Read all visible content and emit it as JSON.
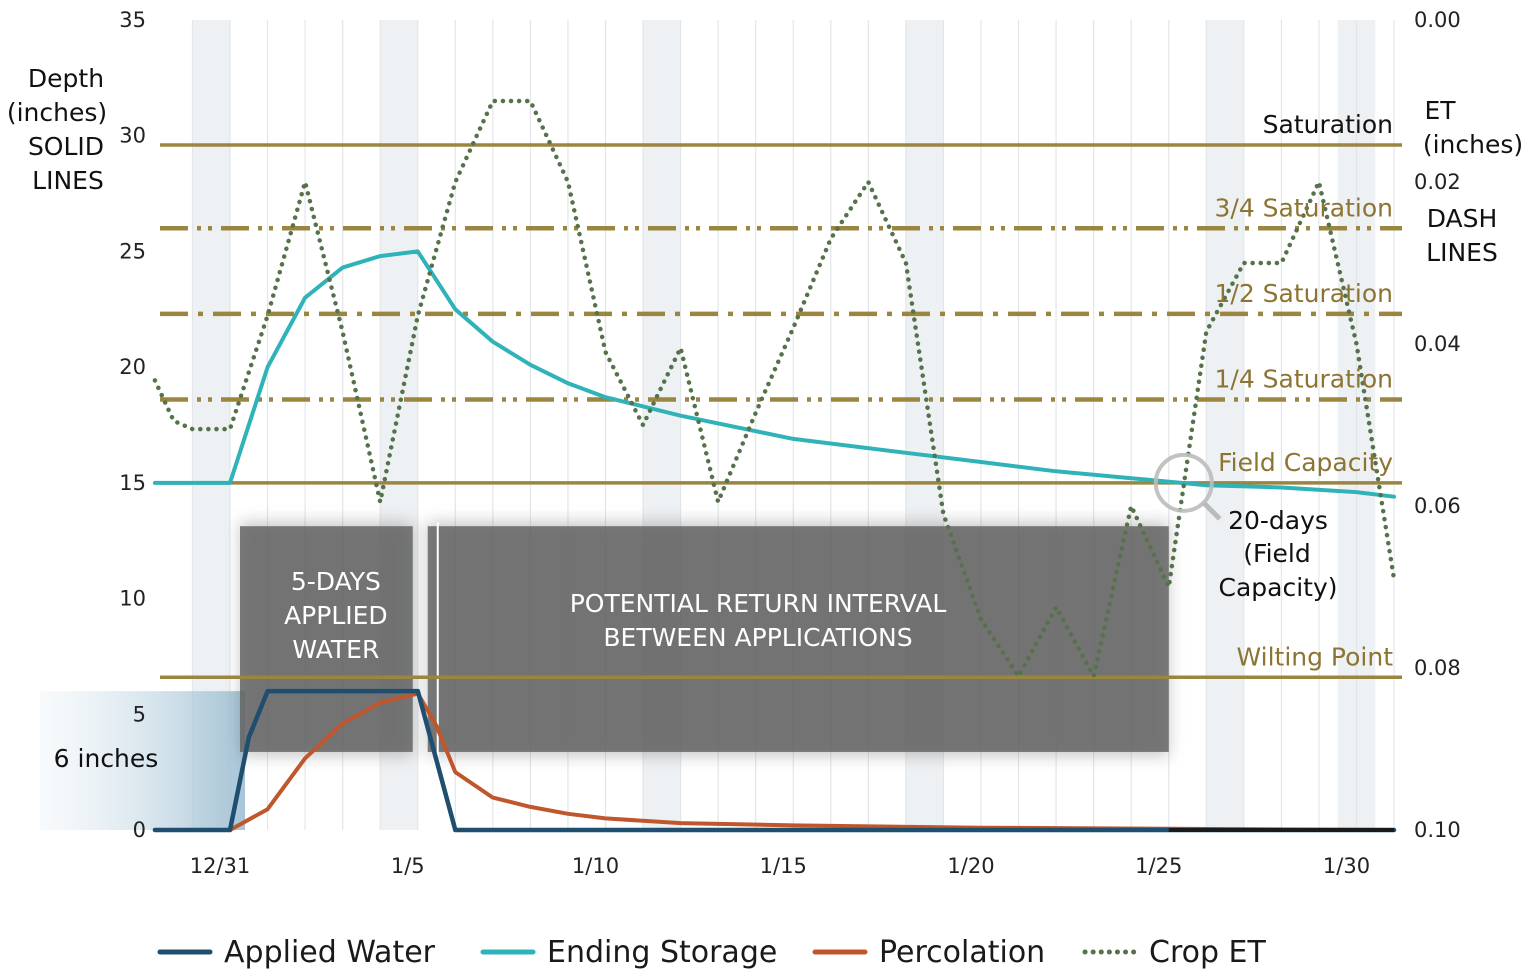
{
  "chart_data": {
    "type": "line",
    "x_axis": {
      "tick_labels": [
        "12/31",
        "1/5",
        "1/10",
        "1/15",
        "1/20",
        "1/25",
        "1/30"
      ],
      "tick_day_index": [
        0,
        5,
        10,
        15,
        20,
        25,
        30
      ],
      "range_day_index": [
        -2,
        31
      ]
    },
    "y_axis_left": {
      "label_lines": [
        "Depth",
        "(inches)",
        "SOLID",
        "LINES"
      ],
      "ticks": [
        "0",
        "5",
        "10",
        "15",
        "20",
        "25",
        "30",
        "35"
      ],
      "range": [
        0,
        35
      ]
    },
    "y_axis_right": {
      "label_lines": [
        "ET",
        "(inches)",
        "DASH",
        "LINES"
      ],
      "ticks": [
        "0.00",
        "0.02",
        "0.04",
        "0.06",
        "0.08",
        "0.10"
      ],
      "range": [
        0.1,
        0.0
      ],
      "inverted": true
    },
    "reference_lines": [
      {
        "label": "Saturation",
        "value": 29.6,
        "style": "solid"
      },
      {
        "label": "3/4 Saturation",
        "value": 26.0,
        "style": "dash-dot-dot"
      },
      {
        "label": "1/2 Saturation",
        "value": 22.3,
        "style": "dash-dot"
      },
      {
        "label": "1/4 Saturation",
        "value": 18.6,
        "style": "dash-dot-dot"
      },
      {
        "label": "Field Capacity",
        "value": 15.0,
        "style": "solid"
      },
      {
        "label": "Wilting Point",
        "value": 6.6,
        "style": "solid"
      }
    ],
    "shaded_regions": [
      {
        "label_lines": [
          "5-DAYS",
          "APPLIED",
          "WATER"
        ],
        "x_start": 0,
        "x_end": 5
      },
      {
        "label_lines": [
          "POTENTIAL RETURN INTERVAL",
          "BETWEEN APPLICATIONS"
        ],
        "x_start": 5,
        "x_end": 25
      }
    ],
    "annotations": [
      {
        "label": "6 inches",
        "value": 6
      },
      {
        "label_lines": [
          "20-days",
          "(Field",
          "Capacity)"
        ],
        "x": 25,
        "y": 15
      }
    ],
    "series": [
      {
        "name": "Applied Water",
        "axis": "left",
        "color": "#1f4e6e",
        "x": [
          -2,
          -1,
          0,
          0.5,
          1,
          2,
          3,
          4,
          5,
          6,
          7,
          10,
          15,
          20,
          25,
          30,
          31
        ],
        "y": [
          0,
          0,
          0,
          4,
          6,
          6,
          6,
          6,
          6,
          0,
          0,
          0,
          0,
          0,
          0,
          0,
          0
        ]
      },
      {
        "name": "Ending Storage",
        "axis": "left",
        "color": "#2fb3b9",
        "x": [
          -2,
          0,
          1,
          2,
          3,
          4,
          5,
          6,
          7,
          8,
          9,
          10,
          12,
          15,
          18,
          20,
          22,
          24,
          26,
          28,
          30,
          31
        ],
        "y": [
          15,
          15,
          20,
          23,
          24.3,
          24.8,
          25,
          22.5,
          21.1,
          20.1,
          19.3,
          18.7,
          17.9,
          16.9,
          16.3,
          15.9,
          15.5,
          15.2,
          14.9,
          14.8,
          14.6,
          14.4
        ]
      },
      {
        "name": "Percolation",
        "axis": "left",
        "color": "#c0562b",
        "x": [
          -2,
          0,
          1,
          2,
          3,
          4,
          5,
          5.5,
          6,
          7,
          8,
          9,
          10,
          12,
          15,
          20,
          25,
          31
        ],
        "y": [
          0,
          0,
          0.9,
          3.1,
          4.6,
          5.5,
          5.9,
          4.5,
          2.5,
          1.4,
          1.0,
          0.7,
          0.5,
          0.3,
          0.2,
          0.1,
          0.05,
          0
        ]
      },
      {
        "name": "Crop ET",
        "axis": "right",
        "color": "#55724a",
        "x": [
          -2,
          -1.5,
          -1,
          0,
          1,
          2,
          3,
          4,
          5,
          6,
          7,
          8,
          9,
          10,
          11,
          12,
          13,
          14,
          15,
          16,
          17,
          18,
          19,
          20,
          21,
          22,
          23,
          24,
          25,
          26,
          27,
          28,
          29,
          30,
          31
        ],
        "y": [
          0.0445,
          0.0495,
          0.0505,
          0.0505,
          0.0365,
          0.02,
          0.0385,
          0.0595,
          0.0365,
          0.02,
          0.01,
          0.01,
          0.02,
          0.041,
          0.05,
          0.0405,
          0.0595,
          0.0485,
          0.038,
          0.027,
          0.02,
          0.03,
          0.061,
          0.074,
          0.081,
          0.0725,
          0.081,
          0.06,
          0.07,
          0.0385,
          0.03,
          0.03,
          0.02,
          0.04,
          0.069
        ]
      }
    ],
    "legend": {
      "position": "bottom",
      "entries": [
        {
          "label": "Applied Water",
          "color": "#1f4e6e",
          "style": "solid"
        },
        {
          "label": "Ending Storage",
          "color": "#2fb3b9",
          "style": "solid"
        },
        {
          "label": "Percolation",
          "color": "#c0562b",
          "style": "solid"
        },
        {
          "label": "Crop ET",
          "color": "#55724a",
          "style": "dotted"
        }
      ]
    },
    "colors": {
      "reference_line": "#9a8541",
      "reference_label": "#8c7433",
      "shade_box": "#606060",
      "blue_area": "#b7d0de"
    }
  }
}
